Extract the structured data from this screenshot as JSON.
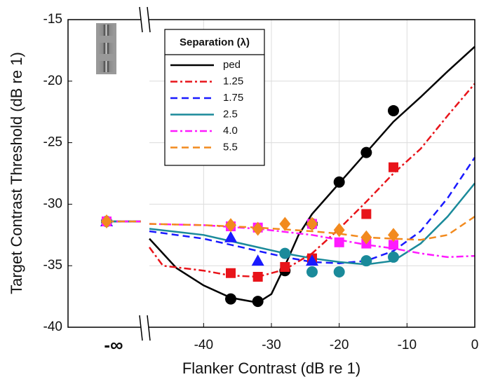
{
  "chart_data": {
    "type": "line",
    "xlabel": "Flanker Contrast (dB re 1)",
    "ylabel": "Target Contrast Threshold (dB re 1)",
    "xlim": [
      -48,
      0
    ],
    "xticks": [
      -40,
      -30,
      -20,
      -10,
      0
    ],
    "neg_inf_label": "-∞",
    "ylim": [
      -40,
      -15
    ],
    "yticks": [
      -40,
      -35,
      -30,
      -25,
      -20,
      -15
    ],
    "grid": true,
    "legend_title": "Separation (λ)",
    "series": [
      {
        "name": "ped",
        "color": "#000000",
        "marker": "circle",
        "dash": "solid",
        "neg_inf_value": -31.4,
        "x": [
          -36,
          -32,
          -28,
          -24,
          -20,
          -16,
          -12
        ],
        "values": [
          -37.7,
          -37.9,
          -35.4,
          -31.6,
          -28.2,
          -25.8,
          -22.4
        ],
        "fit_x": [
          -48,
          -44,
          -40,
          -36,
          -32,
          -30,
          -28,
          -26,
          -24,
          -20,
          -16,
          -12,
          -8,
          -4,
          0
        ],
        "fit_values": [
          -32.8,
          -35.2,
          -36.6,
          -37.6,
          -38.0,
          -37.3,
          -35.0,
          -32.5,
          -30.8,
          -28.3,
          -25.8,
          -23.3,
          -21.3,
          -19.2,
          -17.2
        ]
      },
      {
        "name": "1.25",
        "color": "#e8141a",
        "marker": "square",
        "dash": "dashdot",
        "neg_inf_value": -31.4,
        "x": [
          -36,
          -32,
          -28,
          -24,
          -16,
          -12
        ],
        "values": [
          -35.6,
          -35.9,
          -35.1,
          -34.4,
          -30.8,
          -27.0
        ],
        "fit_x": [
          -48,
          -46,
          -40,
          -36,
          -32,
          -28,
          -24,
          -20,
          -16,
          -12,
          -8,
          -4,
          0
        ],
        "fit_values": [
          -33.5,
          -35.0,
          -35.4,
          -35.8,
          -35.9,
          -35.3,
          -34.0,
          -32.0,
          -29.8,
          -27.5,
          -25.5,
          -22.8,
          -20.2
        ]
      },
      {
        "name": "1.75",
        "color": "#1a1aff",
        "marker": "triangle",
        "dash": "dashed",
        "neg_inf_value": -31.4,
        "x": [
          -36,
          -32,
          -24
        ],
        "values": [
          -32.7,
          -34.6,
          -34.6
        ],
        "fit_x": [
          -48,
          -40,
          -36,
          -32,
          -28,
          -24,
          -20,
          -16,
          -12,
          -8,
          -4,
          0
        ],
        "fit_values": [
          -32.2,
          -32.8,
          -33.3,
          -33.8,
          -34.3,
          -34.7,
          -34.8,
          -34.6,
          -33.8,
          -32.2,
          -29.5,
          -26.2
        ]
      },
      {
        "name": "2.5",
        "color": "#1a8a9a",
        "marker": "circle",
        "dash": "solid",
        "neg_inf_value": -31.4,
        "x": [
          -28,
          -24,
          -20,
          -16,
          -12
        ],
        "values": [
          -34.0,
          -35.5,
          -35.5,
          -34.6,
          -34.3
        ],
        "fit_x": [
          -48,
          -40,
          -36,
          -32,
          -28,
          -24,
          -20,
          -16,
          -12,
          -8,
          -4,
          0
        ],
        "fit_values": [
          -32.0,
          -32.5,
          -33.0,
          -33.5,
          -34.0,
          -34.4,
          -34.7,
          -34.9,
          -34.6,
          -33.2,
          -31.0,
          -28.3
        ]
      },
      {
        "name": "4.0",
        "color": "#ff1aff",
        "marker": "square",
        "dash": "dashdot",
        "neg_inf_value": -31.4,
        "x": [
          -36,
          -32,
          -24,
          -20,
          -16,
          -12
        ],
        "values": [
          -31.8,
          -31.9,
          -31.6,
          -33.1,
          -33.2,
          -33.3
        ],
        "fit_x": [
          -48,
          -40,
          -32,
          -24,
          -20,
          -16,
          -12,
          -8,
          -4,
          0
        ],
        "fit_values": [
          -31.6,
          -31.7,
          -32.0,
          -32.5,
          -32.9,
          -33.3,
          -33.6,
          -34.0,
          -34.3,
          -34.2
        ]
      },
      {
        "name": "5.5",
        "color": "#f28a1e",
        "marker": "diamond",
        "dash": "dashed",
        "neg_inf_value": -31.4,
        "x": [
          -36,
          -32,
          -28,
          -24,
          -20,
          -16,
          -12
        ],
        "values": [
          -31.7,
          -32.0,
          -31.6,
          -31.6,
          -32.1,
          -32.7,
          -32.5
        ],
        "fit_x": [
          -48,
          -40,
          -32,
          -24,
          -20,
          -16,
          -12,
          -8,
          -4,
          0
        ],
        "fit_values": [
          -31.6,
          -31.7,
          -31.9,
          -32.2,
          -32.4,
          -32.7,
          -32.8,
          -32.9,
          -32.5,
          -31.0
        ]
      }
    ]
  }
}
